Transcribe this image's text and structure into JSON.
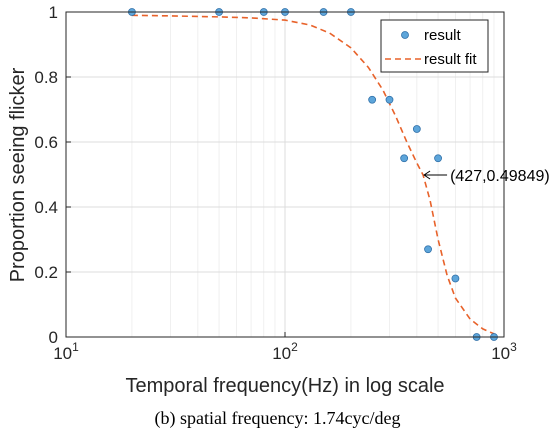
{
  "chart_data": {
    "type": "scatter",
    "xscale": "log",
    "xlim": [
      10,
      1000
    ],
    "ylim": [
      0,
      1
    ],
    "xlabel": "Temporal frequency(Hz) in log scale",
    "ylabel": "Proportion seeing flicker",
    "x_ticks": [
      {
        "value": 10,
        "base": "10",
        "exp": "1"
      },
      {
        "value": 100,
        "base": "10",
        "exp": "2"
      },
      {
        "value": 1000,
        "base": "10",
        "exp": "3"
      }
    ],
    "y_ticks": [
      {
        "value": 0,
        "label": "0"
      },
      {
        "value": 0.2,
        "label": "0.2"
      },
      {
        "value": 0.4,
        "label": "0.4"
      },
      {
        "value": 0.6,
        "label": "0.6"
      },
      {
        "value": 0.8,
        "label": "0.8"
      },
      {
        "value": 1,
        "label": "1"
      }
    ],
    "grid": true,
    "legend_position": "top-right",
    "series": [
      {
        "name": "result",
        "kind": "points",
        "color": "#5DA5DA",
        "points": [
          {
            "x": 20,
            "y": 1
          },
          {
            "x": 50,
            "y": 1
          },
          {
            "x": 80,
            "y": 1
          },
          {
            "x": 100,
            "y": 1
          },
          {
            "x": 150,
            "y": 1
          },
          {
            "x": 200,
            "y": 1
          },
          {
            "x": 250,
            "y": 0.73
          },
          {
            "x": 300,
            "y": 0.73
          },
          {
            "x": 350,
            "y": 0.55
          },
          {
            "x": 400,
            "y": 0.64
          },
          {
            "x": 450,
            "y": 0.27
          },
          {
            "x": 500,
            "y": 0.55
          },
          {
            "x": 600,
            "y": 0.18
          },
          {
            "x": 750,
            "y": 0
          },
          {
            "x": 900,
            "y": 0
          }
        ]
      },
      {
        "name": "result fit",
        "kind": "dashed-line",
        "color": "#E8622A",
        "points": [
          {
            "x": 20,
            "y": 0.99
          },
          {
            "x": 30,
            "y": 0.988
          },
          {
            "x": 50,
            "y": 0.985
          },
          {
            "x": 70,
            "y": 0.982
          },
          {
            "x": 100,
            "y": 0.975
          },
          {
            "x": 130,
            "y": 0.96
          },
          {
            "x": 160,
            "y": 0.935
          },
          {
            "x": 200,
            "y": 0.89
          },
          {
            "x": 240,
            "y": 0.83
          },
          {
            "x": 280,
            "y": 0.76
          },
          {
            "x": 320,
            "y": 0.68
          },
          {
            "x": 360,
            "y": 0.6
          },
          {
            "x": 400,
            "y": 0.535
          },
          {
            "x": 427,
            "y": 0.49849
          },
          {
            "x": 460,
            "y": 0.42
          },
          {
            "x": 500,
            "y": 0.3
          },
          {
            "x": 550,
            "y": 0.19
          },
          {
            "x": 600,
            "y": 0.12
          },
          {
            "x": 700,
            "y": 0.055
          },
          {
            "x": 800,
            "y": 0.025
          },
          {
            "x": 900,
            "y": 0.01
          }
        ]
      }
    ],
    "annotation": {
      "text": "(427,0.49849)",
      "x": 427,
      "y": 0.49849
    }
  },
  "caption": "(b)  spatial frequency: 1.74cyc/deg"
}
